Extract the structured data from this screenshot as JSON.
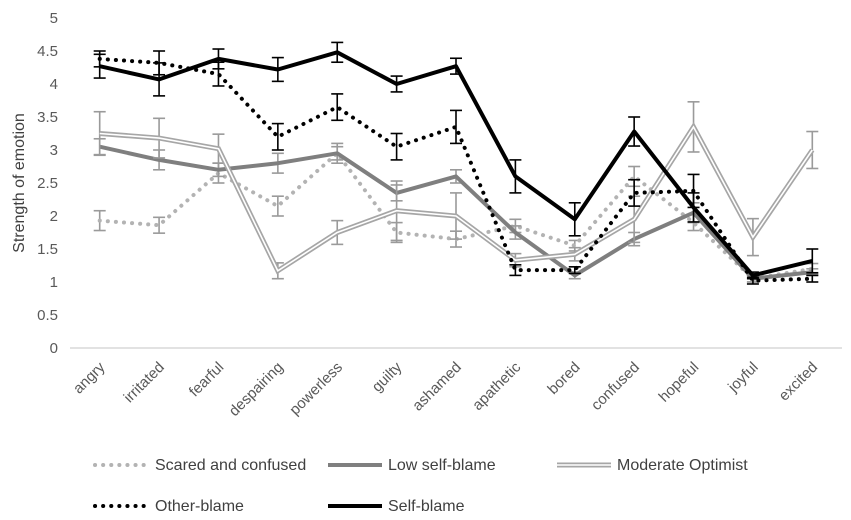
{
  "chart_data": {
    "type": "line",
    "title": "",
    "xlabel": "",
    "ylabel": "Strength of emotion",
    "ylim": [
      0,
      5
    ],
    "yticks": [
      "0",
      "0.5",
      "1",
      "1.5",
      "2",
      "2.5",
      "3",
      "3.5",
      "4",
      "4.5",
      "5"
    ],
    "grid": false,
    "legend_position": "bottom",
    "categories": [
      "angry",
      "irritated",
      "fearful",
      "despairing",
      "powerless",
      "guilty",
      "ashamed",
      "apathetic",
      "bored",
      "confused",
      "hopeful",
      "joyful",
      "excited"
    ],
    "series": [
      {
        "name": "Scared and confused",
        "style": "dotted",
        "color": "#b3b3b3",
        "values": [
          1.93,
          1.86,
          2.65,
          2.15,
          2.95,
          1.75,
          1.65,
          1.85,
          1.55,
          2.6,
          1.9,
          1.05,
          1.2
        ],
        "errors": [
          0.15,
          0.12,
          0.15,
          0.15,
          0.15,
          0.15,
          0.12,
          0.1,
          0.08,
          0.15,
          0.12,
          0.05,
          0.08
        ]
      },
      {
        "name": "Low self-blame",
        "style": "solid",
        "color": "#7f7f7f",
        "values": [
          3.05,
          2.85,
          2.7,
          2.8,
          2.95,
          2.35,
          2.6,
          1.75,
          1.1,
          1.65,
          2.05,
          1.05,
          1.15
        ],
        "errors": [
          0.12,
          0.15,
          0.1,
          0.15,
          0.1,
          0.12,
          0.1,
          0.1,
          0.05,
          0.1,
          0.15,
          0.05,
          0.05
        ]
      },
      {
        "name": "Moderate Optimist",
        "style": "double",
        "color": "#a6a6a6",
        "values": [
          3.25,
          3.18,
          3.02,
          1.17,
          1.75,
          2.08,
          2.0,
          1.33,
          1.42,
          1.95,
          3.35,
          1.68,
          3.0
        ],
        "errors": [
          0.33,
          0.3,
          0.22,
          0.12,
          0.18,
          0.45,
          0.35,
          0.1,
          0.1,
          0.35,
          0.38,
          0.28,
          0.28
        ]
      },
      {
        "name": "Other-blame",
        "style": "dotted",
        "color": "#000000",
        "values": [
          4.38,
          4.32,
          4.15,
          3.2,
          3.65,
          3.05,
          3.35,
          1.18,
          1.18,
          2.35,
          2.38,
          1.02,
          1.05
        ],
        "errors": [
          0.12,
          0.18,
          0.18,
          0.2,
          0.2,
          0.2,
          0.25,
          0.08,
          0.05,
          0.2,
          0.25,
          0.05,
          0.05
        ]
      },
      {
        "name": "Self-blame",
        "style": "solid",
        "color": "#000000",
        "values": [
          4.27,
          4.07,
          4.38,
          4.22,
          4.48,
          4.0,
          4.27,
          2.6,
          1.95,
          3.28,
          2.13,
          1.1,
          1.32
        ],
        "errors": [
          0.18,
          0.25,
          0.15,
          0.18,
          0.15,
          0.12,
          0.12,
          0.25,
          0.25,
          0.22,
          0.22,
          0.05,
          0.18
        ]
      }
    ]
  }
}
